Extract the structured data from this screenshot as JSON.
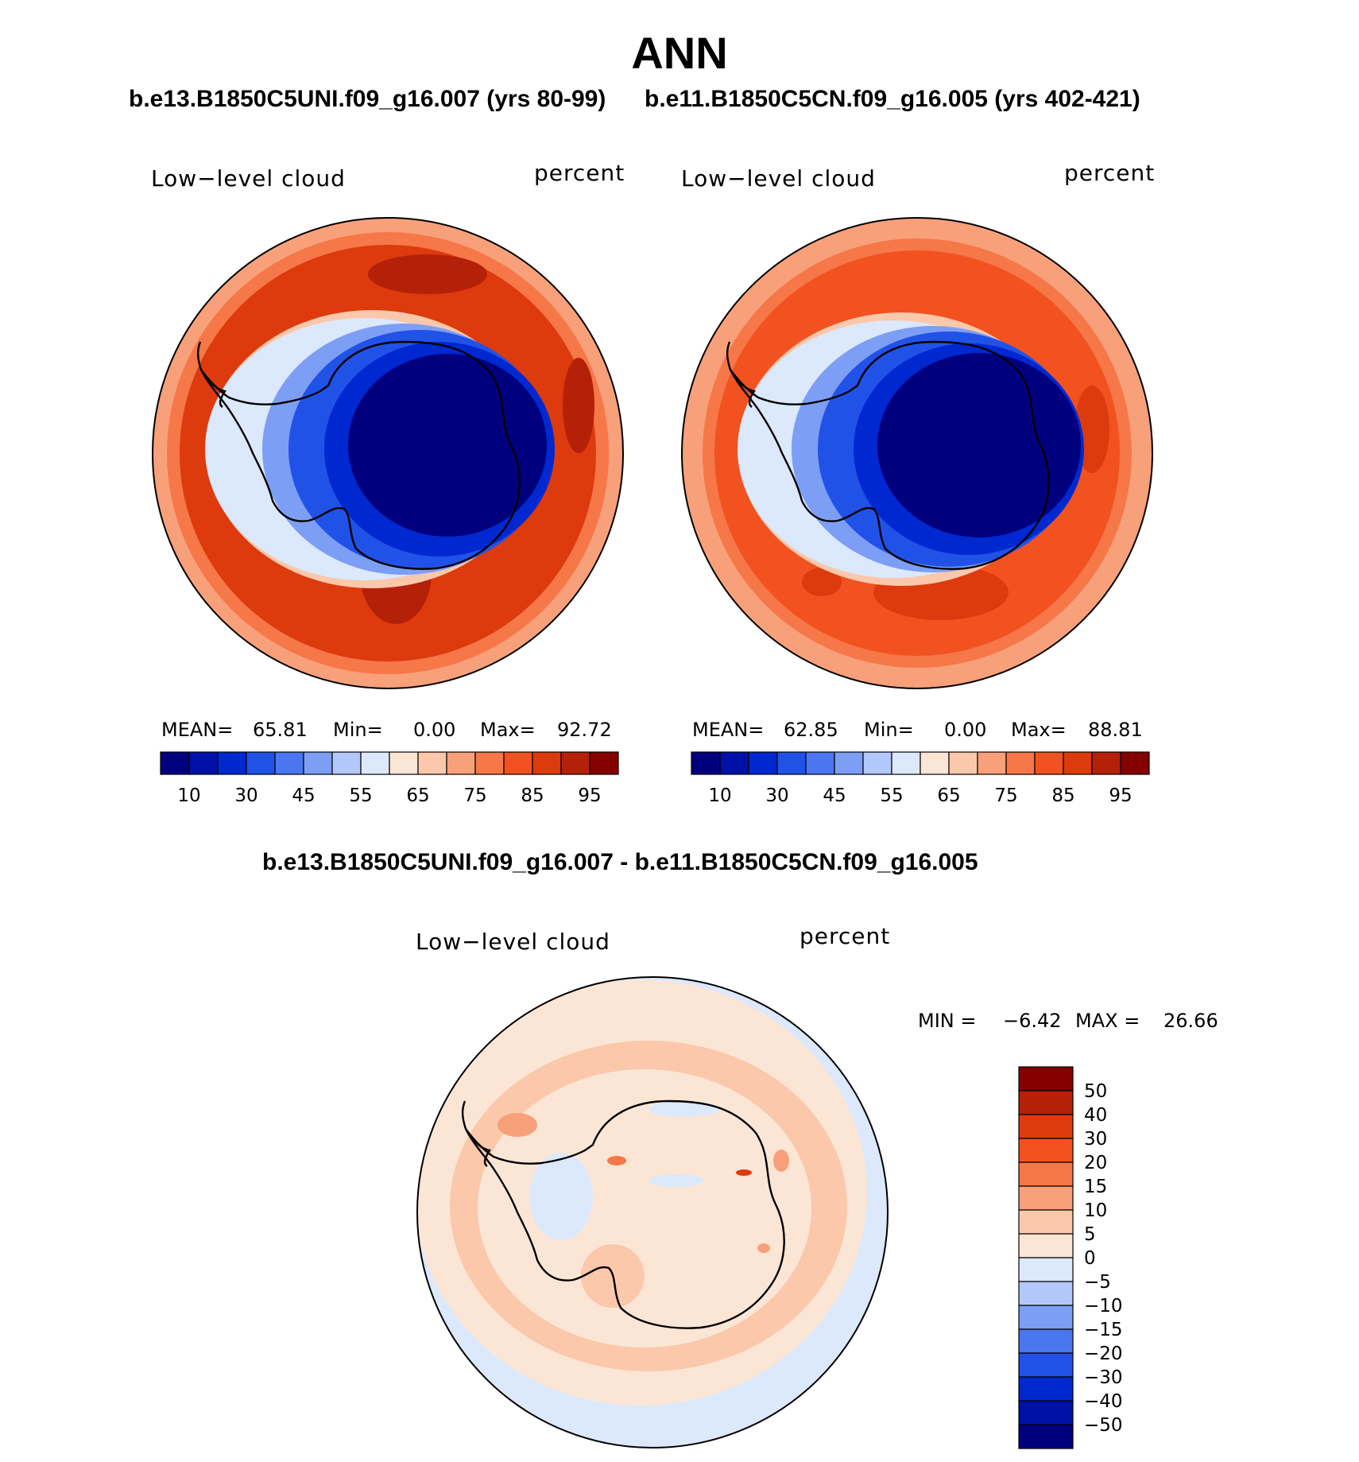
{
  "page_title": "ANN",
  "panels": [
    {
      "case_title": "b.e13.B1850C5UNI.f09_g16.007 (yrs 80-99)",
      "field_label": "Low−level cloud",
      "units": "percent",
      "stats": {
        "mean_label": "MEAN=",
        "mean": "65.81",
        "min_label": "Min=",
        "min": "0.00",
        "max_label": "Max=",
        "max": "92.72"
      }
    },
    {
      "case_title": "b.e11.B1850C5CN.f09_g16.005 (yrs 402-421)",
      "field_label": "Low−level cloud",
      "units": "percent",
      "stats": {
        "mean_label": "MEAN=",
        "mean": "62.85",
        "min_label": "Min=",
        "min": "0.00",
        "max_label": "Max=",
        "max": "88.81"
      }
    },
    {
      "case_title": "b.e13.B1850C5UNI.f09_g16.007 - b.e11.B1850C5CN.f09_g16.005",
      "field_label": "Low−level cloud",
      "units": "percent",
      "stats": {
        "min_label": "MIN =",
        "min": "−6.42",
        "max_label": "MAX =",
        "max": "26.66"
      }
    }
  ],
  "colorbar_abs": {
    "colors": [
      "#00007f",
      "#0011a8",
      "#0028d0",
      "#2152e8",
      "#4a76f0",
      "#7d9ef5",
      "#b3c8fa",
      "#dce8fb",
      "#fbe6d6",
      "#fbc8ab",
      "#f8a07a",
      "#f67748",
      "#f25220",
      "#dd3a0d",
      "#b52108",
      "#850000"
    ],
    "labels": [
      "10",
      "30",
      "45",
      "55",
      "65",
      "75",
      "85",
      "95"
    ]
  },
  "colorbar_diff": {
    "colors": [
      "#850000",
      "#b52108",
      "#dd3a0d",
      "#f25220",
      "#f67748",
      "#f8a07a",
      "#fbc8ab",
      "#fbe6d6",
      "#dce8fb",
      "#b3c8fa",
      "#7d9ef5",
      "#4a76f0",
      "#2152e8",
      "#0028d0",
      "#0011a8",
      "#00007f"
    ],
    "labels": [
      "50",
      "40",
      "30",
      "20",
      "15",
      "10",
      "5",
      "0",
      "−5",
      "−10",
      "−15",
      "−20",
      "−30",
      "−40",
      "−50"
    ]
  },
  "chart_data": [
    {
      "type": "heatmap",
      "projection": "south polar stereographic",
      "title": "b.e13.B1850C5UNI.f09_g16.007 (yrs 80-99)",
      "field": "Low−level cloud",
      "units": "percent",
      "contour_levels": [
        10,
        20,
        30,
        40,
        45,
        50,
        55,
        60,
        65,
        70,
        75,
        80,
        85,
        90,
        95
      ],
      "mean": 65.81,
      "min": 0.0,
      "max": 92.72
    },
    {
      "type": "heatmap",
      "projection": "south polar stereographic",
      "title": "b.e11.B1850C5CN.f09_g16.005 (yrs 402-421)",
      "field": "Low−level cloud",
      "units": "percent",
      "contour_levels": [
        10,
        20,
        30,
        40,
        45,
        50,
        55,
        60,
        65,
        70,
        75,
        80,
        85,
        90,
        95
      ],
      "mean": 62.85,
      "min": 0.0,
      "max": 88.81
    },
    {
      "type": "heatmap",
      "projection": "south polar stereographic",
      "title": "b.e13.B1850C5UNI.f09_g16.007 - b.e11.B1850C5CN.f09_g16.005",
      "field": "Low−level cloud",
      "units": "percent",
      "contour_levels": [
        -50,
        -40,
        -30,
        -20,
        -15,
        -10,
        -5,
        0,
        5,
        10,
        15,
        20,
        30,
        40,
        50
      ],
      "min": -6.42,
      "max": 26.66
    }
  ]
}
